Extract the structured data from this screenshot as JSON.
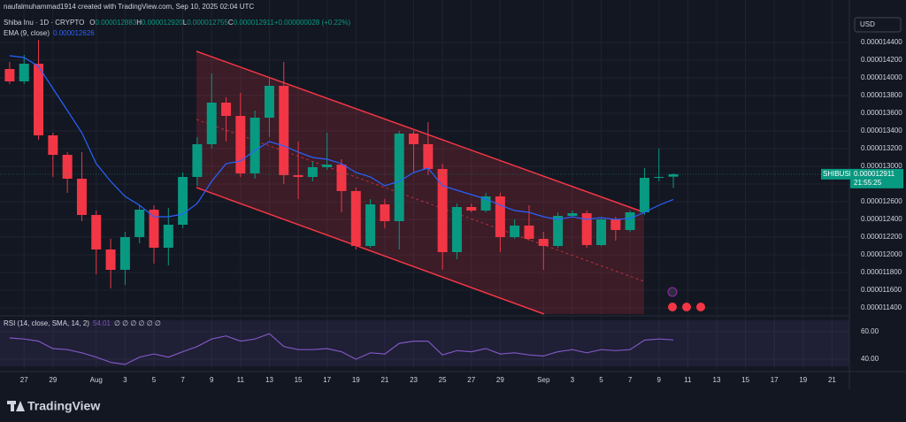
{
  "header": {
    "credit": "naufalmuhammad1914 created with TradingView.com, Sep 10, 2025 02:04 UTC",
    "symbol": "Shiba Inu · 1D · CRYPTO",
    "quote": [
      "O",
      "0.000012883",
      "H",
      "0.000012920",
      "L",
      "0.000012755",
      "C",
      "0.000012911",
      "+0.000000028 (+0.22%)"
    ],
    "ema_label": "EMA (9, close)",
    "ema_value": "0.000012626",
    "rsi_label": "RSI (14, close, SMA, 14, 2)",
    "rsi_value": "54.01",
    "rsi_empty": "∅ ∅ ∅ ∅ ∅ ∅",
    "currency": "USD",
    "tag_symbol": "SHIBUSD",
    "tag_price": "0.000012911",
    "tag_time": "21:55:25",
    "brand": "TradingView"
  },
  "chart_data": [
    {
      "type": "candlestick",
      "up_color": "#089981",
      "down_color": "#f23645",
      "open": [
        1.41e-05,
        1.396e-05,
        1.416e-05,
        1.335e-05,
        1.313e-05,
        1.286e-05,
        1.245e-05,
        1.206e-05,
        1.183e-05,
        1.22e-05,
        1.251e-05,
        1.208e-05,
        1.234e-05,
        1.288e-05,
        1.325e-05,
        1.372e-05,
        1.357e-05,
        1.292e-05,
        1.355e-05,
        1.391e-05,
        1.29e-05,
        1.288e-05,
        1.299e-05,
        1.302e-05,
        1.272e-05,
        1.21e-05,
        1.257e-05,
        1.238e-05,
        1.337e-05,
        1.325e-05,
        1.297e-05,
        1.203e-05,
        1.254e-05,
        1.25e-05,
        1.266e-05,
        1.22e-05,
        1.233e-05,
        1.218e-05,
        1.21e-05,
        1.244e-05,
        1.247e-05,
        1.211e-05,
        1.24e-05,
        1.228e-05,
        1.248e-05,
        1.287e-05,
        1.2883e-05
      ],
      "high": [
        1.418e-05,
        1.426e-05,
        1.443e-05,
        1.338e-05,
        1.316e-05,
        1.316e-05,
        1.25e-05,
        1.218e-05,
        1.226e-05,
        1.256e-05,
        1.256e-05,
        1.253e-05,
        1.293e-05,
        1.333e-05,
        1.405e-05,
        1.378e-05,
        1.383e-05,
        1.363e-05,
        1.4e-05,
        1.418e-05,
        1.328e-05,
        1.305e-05,
        1.338e-05,
        1.308e-05,
        1.276e-05,
        1.263e-05,
        1.263e-05,
        1.34e-05,
        1.34e-05,
        1.35e-05,
        1.303e-05,
        1.258e-05,
        1.258e-05,
        1.27e-05,
        1.27e-05,
        1.24e-05,
        1.256e-05,
        1.226e-05,
        1.248e-05,
        1.25e-05,
        1.25e-05,
        1.242e-05,
        1.243e-05,
        1.25e-05,
        1.298e-05,
        1.32e-05,
        1.292e-05
      ],
      "low": [
        1.393e-05,
        1.393e-05,
        1.33e-05,
        1.288e-05,
        1.27e-05,
        1.238e-05,
        1.178e-05,
        1.162e-05,
        1.166e-05,
        1.213e-05,
        1.19e-05,
        1.188e-05,
        1.23e-05,
        1.278e-05,
        1.32e-05,
        1.328e-05,
        1.288e-05,
        1.286e-05,
        1.333e-05,
        1.28e-05,
        1.263e-05,
        1.283e-05,
        1.296e-05,
        1.248e-05,
        1.206e-05,
        1.208e-05,
        1.23e-05,
        1.206e-05,
        1.293e-05,
        1.29e-05,
        1.183e-05,
        1.195e-05,
        1.248e-05,
        1.248e-05,
        1.203e-05,
        1.218e-05,
        1.216e-05,
        1.183e-05,
        1.208e-05,
        1.242e-05,
        1.208e-05,
        1.21e-05,
        1.216e-05,
        1.226e-05,
        1.245e-05,
        1.283e-05,
        1.2755e-05
      ],
      "close": [
        1.396e-05,
        1.416e-05,
        1.335e-05,
        1.313e-05,
        1.286e-05,
        1.245e-05,
        1.206e-05,
        1.183e-05,
        1.22e-05,
        1.251e-05,
        1.208e-05,
        1.234e-05,
        1.288e-05,
        1.325e-05,
        1.372e-05,
        1.357e-05,
        1.292e-05,
        1.355e-05,
        1.391e-05,
        1.29e-05,
        1.288e-05,
        1.299e-05,
        1.302e-05,
        1.272e-05,
        1.21e-05,
        1.257e-05,
        1.238e-05,
        1.337e-05,
        1.325e-05,
        1.297e-05,
        1.203e-05,
        1.254e-05,
        1.25e-05,
        1.266e-05,
        1.22e-05,
        1.233e-05,
        1.218e-05,
        1.21e-05,
        1.244e-05,
        1.247e-05,
        1.211e-05,
        1.24e-05,
        1.228e-05,
        1.248e-05,
        1.287e-05,
        1.288e-05,
        1.2911e-05
      ],
      "series": [
        {
          "name": "EMA (9, close)",
          "color": "#2962ff",
          "values": [
            1.425e-05,
            1.423e-05,
            1.413e-05,
            1.388e-05,
            1.363e-05,
            1.338e-05,
            1.303e-05,
            1.283e-05,
            1.266e-05,
            1.256e-05,
            1.243e-05,
            1.243e-05,
            1.246e-05,
            1.258e-05,
            1.283e-05,
            1.303e-05,
            1.306e-05,
            1.318e-05,
            1.328e-05,
            1.323e-05,
            1.316e-05,
            1.31e-05,
            1.308e-05,
            1.303e-05,
            1.293e-05,
            1.288e-05,
            1.278e-05,
            1.283e-05,
            1.293e-05,
            1.298e-05,
            1.278e-05,
            1.273e-05,
            1.268e-05,
            1.263e-05,
            1.256e-05,
            1.25e-05,
            1.248e-05,
            1.243e-05,
            1.24e-05,
            1.243e-05,
            1.24e-05,
            1.242e-05,
            1.24e-05,
            1.241e-05,
            1.248e-05,
            1.256e-05,
            1.2626e-05
          ]
        }
      ],
      "xlim": [
        -0.67,
        58.2
      ],
      "xticks": [
        {
          "value": 1,
          "label": "27"
        },
        {
          "value": 3,
          "label": "29"
        },
        {
          "value": 6,
          "label": "Aug"
        },
        {
          "value": 8,
          "label": "3"
        },
        {
          "value": 10,
          "label": "5"
        },
        {
          "value": 12,
          "label": "7"
        },
        {
          "value": 14,
          "label": "9"
        },
        {
          "value": 16,
          "label": "11"
        },
        {
          "value": 18,
          "label": "13"
        },
        {
          "value": 20,
          "label": "15"
        },
        {
          "value": 22,
          "label": "17"
        },
        {
          "value": 24,
          "label": "19"
        },
        {
          "value": 26,
          "label": "21"
        },
        {
          "value": 28,
          "label": "23"
        },
        {
          "value": 30,
          "label": "25"
        },
        {
          "value": 32,
          "label": "27"
        },
        {
          "value": 34,
          "label": "29"
        },
        {
          "value": 37,
          "label": "Sep"
        },
        {
          "value": 39,
          "label": "3"
        },
        {
          "value": 41,
          "label": "5"
        },
        {
          "value": 43,
          "label": "7"
        },
        {
          "value": 45,
          "label": "9"
        },
        {
          "value": 47,
          "label": "11"
        },
        {
          "value": 49,
          "label": "13"
        },
        {
          "value": 51,
          "label": "15"
        },
        {
          "value": 53,
          "label": "17"
        },
        {
          "value": 55,
          "label": "19"
        },
        {
          "value": 57,
          "label": "21"
        }
      ],
      "ylim": [
        1.133e-05,
        1.488e-05
      ],
      "yticks": [
        {
          "value": 1.44e-05,
          "label": "0.000014400"
        },
        {
          "value": 1.42e-05,
          "label": "0.000014200"
        },
        {
          "value": 1.4e-05,
          "label": "0.000014000"
        },
        {
          "value": 1.38e-05,
          "label": "0.000013800"
        },
        {
          "value": 1.36e-05,
          "label": "0.000013600"
        },
        {
          "value": 1.34e-05,
          "label": "0.000013400"
        },
        {
          "value": 1.32e-05,
          "label": "0.000013200"
        },
        {
          "value": 1.3e-05,
          "label": "0.000013000"
        },
        {
          "value": 1.28e-05,
          "label": "0.000012800"
        },
        {
          "value": 1.26e-05,
          "label": "0.000012600"
        },
        {
          "value": 1.24e-05,
          "label": "0.000012400"
        },
        {
          "value": 1.22e-05,
          "label": "0.000012200"
        },
        {
          "value": 1.2e-05,
          "label": "0.000012000"
        },
        {
          "value": 1.18e-05,
          "label": "0.000011800"
        },
        {
          "value": 1.16e-05,
          "label": "0.000011600"
        },
        {
          "value": 1.14e-05,
          "label": "0.000011400"
        }
      ],
      "grid": true
    },
    {
      "type": "line",
      "series": [
        {
          "name": "RSI (14, close, SMA, 14, 2)",
          "color": "#7e57c2",
          "values": [
            55.4,
            54.6,
            53.1,
            47.7,
            46.9,
            44.6,
            41.5,
            37.7,
            36.2,
            41.5,
            43.8,
            41.5,
            45.4,
            49.2,
            54.6,
            56.9,
            53.1,
            54.6,
            58.5,
            49.2,
            46.9,
            46.9,
            47.7,
            45.4,
            40.0,
            44.6,
            43.8,
            51.5,
            53.1,
            53.1,
            43.1,
            46.2,
            45.4,
            47.7,
            43.8,
            44.6,
            43.1,
            42.3,
            45.4,
            46.9,
            44.6,
            46.9,
            46.2,
            46.9,
            53.8,
            54.6,
            54.01
          ]
        }
      ],
      "ylim": [
        32.3,
        70.8
      ],
      "yticks": [
        {
          "value": 60,
          "label": "60.00"
        },
        {
          "value": 40,
          "label": "40.00"
        }
      ]
    }
  ]
}
